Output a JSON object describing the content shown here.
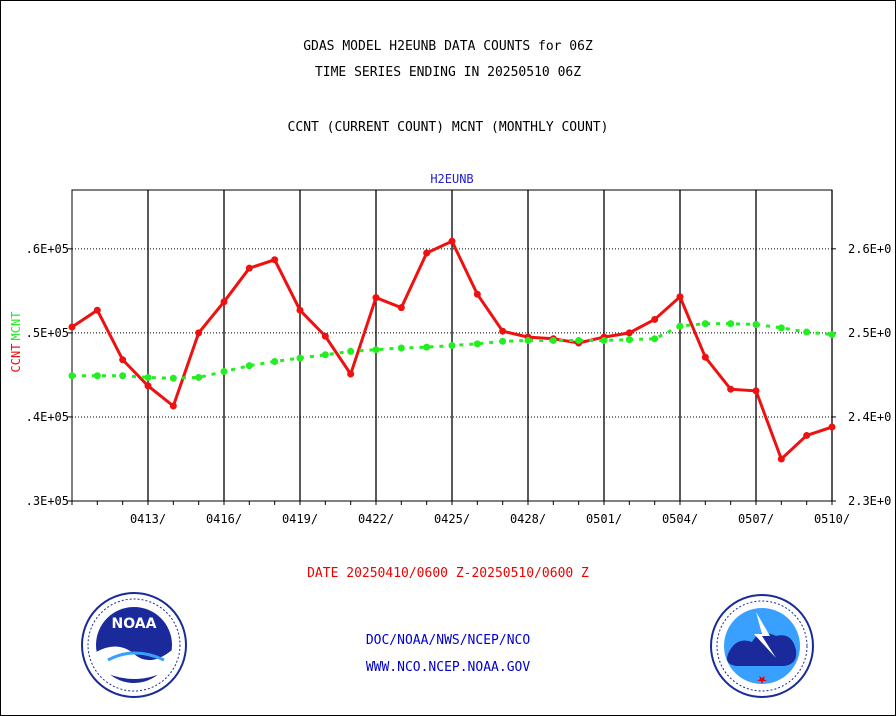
{
  "title_lines": [
    "GDAS MODEL H2EUNB DATA COUNTS for 06Z",
    "TIME SERIES ENDING IN 20250510 06Z",
    "CCNT (CURRENT COUNT) MCNT (MONTHLY COUNT)"
  ],
  "footer": {
    "date_range": "DATE 20250410/0600 Z-20250510/0600 Z",
    "line1": "DOC/NOAA/NWS/NCEP/NCO",
    "line2": "WWW.NCO.NCEP.NOAA.GOV"
  },
  "logos": {
    "left": "noaa-logo",
    "right": "nws-logo"
  },
  "chart_data": {
    "type": "line",
    "title": "H2EUNB",
    "ylabel_left": "CCNT",
    "ylabel_right": "MCNT",
    "xlabel": "",
    "x_tick_labels": [
      "0413/",
      "0416/",
      "0419/",
      "0422/",
      "0425/",
      "0428/",
      "0501/",
      "0504/",
      "0507/",
      "0510/"
    ],
    "x_tick_days": [
      3,
      6,
      9,
      12,
      15,
      18,
      21,
      24,
      27,
      30
    ],
    "xlim": [
      0,
      30
    ],
    "y_left_ticks": [
      ".3E+05",
      ".4E+05",
      ".5E+05",
      ".6E+05"
    ],
    "y_left_tick_values": [
      0.3,
      0.4,
      0.5,
      0.6
    ],
    "ylim_left": [
      0.3,
      0.67
    ],
    "y_right_ticks": [
      "2.3E+0",
      "2.4E+0",
      "2.5E+0",
      "2.6E+0"
    ],
    "y_right_tick_values": [
      2.3,
      2.4,
      2.5,
      2.6
    ],
    "ylim_right": [
      2.3,
      2.67
    ],
    "grid": true,
    "colors": {
      "ccnt": "#ee1111",
      "mcnt": "#22ee22",
      "title": "#2222cc"
    },
    "series": [
      {
        "name": "CCNT",
        "axis": "left",
        "x": [
          0,
          1,
          2,
          3,
          4,
          5,
          6,
          7,
          8,
          9,
          10,
          11,
          12,
          13,
          14,
          15,
          16,
          17,
          18,
          19,
          20,
          21,
          22,
          23,
          24,
          25,
          26,
          27,
          28,
          29,
          30
        ],
        "values": [
          0.507,
          0.527,
          0.468,
          0.437,
          0.413,
          0.5,
          0.537,
          0.577,
          0.587,
          0.527,
          0.496,
          0.451,
          0.542,
          0.53,
          0.595,
          0.609,
          0.546,
          0.502,
          0.495,
          0.493,
          0.488,
          0.495,
          0.5,
          0.516,
          0.543,
          0.471,
          0.433,
          0.431,
          0.35,
          0.378,
          0.388
        ]
      },
      {
        "name": "MCNT",
        "axis": "right",
        "x": [
          0,
          1,
          2,
          3,
          4,
          5,
          6,
          7,
          8,
          9,
          10,
          11,
          12,
          13,
          14,
          15,
          16,
          17,
          18,
          19,
          20,
          21,
          22,
          23,
          24,
          25,
          26,
          27,
          28,
          29,
          30
        ],
        "values": [
          2.449,
          2.449,
          2.449,
          2.447,
          2.446,
          2.447,
          2.454,
          2.461,
          2.466,
          2.47,
          2.474,
          2.478,
          2.48,
          2.482,
          2.483,
          2.485,
          2.487,
          2.49,
          2.491,
          2.491,
          2.491,
          2.491,
          2.492,
          2.493,
          2.508,
          2.511,
          2.511,
          2.51,
          2.506,
          2.501,
          2.498
        ]
      }
    ]
  }
}
